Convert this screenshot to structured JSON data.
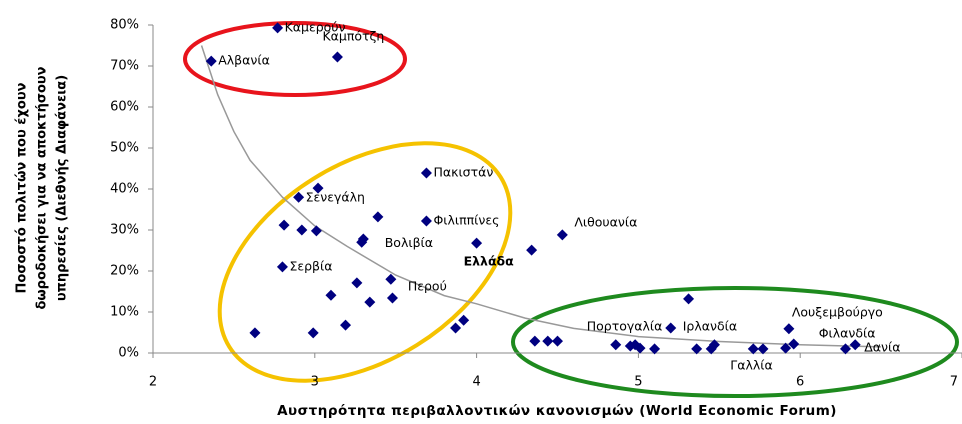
{
  "chart_data": {
    "type": "scatter",
    "x_label": "Αυστηρότητα περιβαλλοντικών κανονισμών (World Economic Forum)",
    "y_label": [
      "Ποσοστό πολιτών που έχουν",
      "δωροδοκήσει για να αποκτήσουν",
      "υπηρεσίες (Διεθνής Διαφάνεια)"
    ],
    "color": "#000080",
    "x": [
      2.36,
      2.77,
      3.14,
      2.63,
      2.8,
      2.81,
      2.9,
      2.92,
      3.02,
      3.01,
      2.99,
      3.1,
      3.19,
      3.26,
      3.29,
      3.3,
      3.34,
      3.39,
      3.47,
      3.48,
      3.69,
      3.69,
      3.87,
      3.92,
      4.0,
      4.34,
      4.36,
      4.44,
      4.5,
      4.53,
      4.86,
      4.95,
      4.98,
      5.01,
      5.1,
      5.2,
      5.31,
      5.36,
      5.45,
      5.47,
      5.71,
      5.77,
      5.93,
      5.91,
      5.96,
      6.28,
      6.34
    ],
    "values": [
      71.2,
      79.3,
      72.2,
      4.9,
      21,
      31.2,
      38,
      30,
      40.2,
      29.8,
      4.9,
      14.1,
      6.8,
      17.1,
      27,
      27.8,
      12.4,
      33.2,
      18,
      13.4,
      43.9,
      32.2,
      6.1,
      8,
      26.8,
      25.1,
      2.9,
      2.9,
      2.9,
      28.8,
      2,
      1.7,
      2,
      1.2,
      1,
      6.1,
      13.2,
      1,
      1,
      2,
      1,
      1,
      5.9,
      1.2,
      2.2,
      1,
      2
    ],
    "point_labels": [
      "Αλβανία",
      "Καμερούν",
      "Καμπότζη",
      null,
      "Σερβία",
      null,
      "Σενεγάλη",
      null,
      null,
      null,
      null,
      null,
      null,
      null,
      "Βολιβία",
      null,
      null,
      null,
      "Περού",
      null,
      "Πακιστάν",
      "Φιλιππίνες",
      null,
      null,
      "Ελλάδα",
      null,
      null,
      null,
      null,
      "Λιθουανία",
      "Πορτογαλία",
      null,
      null,
      null,
      null,
      "Ιρλανδία",
      null,
      null,
      null,
      null,
      "Γαλλία",
      null,
      "Λουξεμβούργο",
      null,
      "Φιλανδία",
      null,
      "Δανία"
    ],
    "trendline": {
      "color": "#999999",
      "x": [
        2.3,
        2.4,
        2.5,
        2.6,
        2.8,
        3.0,
        3.2,
        3.5,
        3.8,
        4.0,
        4.3,
        4.6,
        5.0,
        5.5,
        6.0,
        6.5
      ],
      "values": [
        75,
        63,
        54,
        47,
        38,
        31,
        26,
        19,
        14,
        12,
        8.5,
        6,
        4,
        2.8,
        2,
        1.5
      ]
    },
    "xlim": [
      2,
      7
    ],
    "xticks": [
      2,
      3,
      4,
      5,
      6,
      7
    ],
    "ylim": [
      0,
      80
    ],
    "yticks": [
      {
        "value": 0,
        "label": "0%"
      },
      {
        "value": 10,
        "label": "10%"
      },
      {
        "value": 20,
        "label": "20%"
      },
      {
        "value": 30,
        "label": "30%"
      },
      {
        "value": 40,
        "label": "40%"
      },
      {
        "value": 50,
        "label": "50%"
      },
      {
        "value": 60,
        "label": "60%"
      },
      {
        "value": 70,
        "label": "70%"
      },
      {
        "value": 80,
        "label": "80%"
      }
    ]
  }
}
